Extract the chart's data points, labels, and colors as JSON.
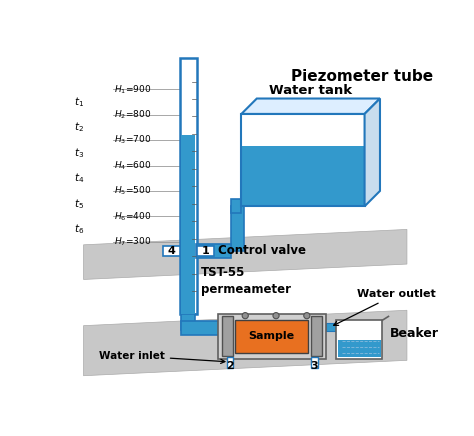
{
  "bg_color": "#ffffff",
  "water_blue": "#2277bb",
  "water_fill": "#3399cc",
  "water_fill_light": "#66aadd",
  "orange": "#e87020",
  "white": "#ffffff",
  "gray_plat": "#c8c8c8",
  "gray_device": "#b8b8b8",
  "tube_blue": "#2277bb",
  "h_labels": [
    "$H_1$=900",
    "$H_2$=800",
    "$H_3$=700",
    "$H_4$=600",
    "$H_5$=500",
    "$H_6$=400",
    "$H_7$=300"
  ],
  "t_labels": [
    "$t_1$",
    "$t_2$",
    "$t_3$",
    "$t_4$",
    "$t_5$",
    "$t_6$"
  ],
  "title": "Piezometer tube",
  "water_tank_label": "Water tank",
  "control_valve_label": "Control valve",
  "tst_label": "TST-55\npermeameter",
  "water_outlet_label": "Water outlet",
  "beaker_label": "Beaker",
  "water_inlet_label": "Water inlet",
  "sample_label": "Sample"
}
